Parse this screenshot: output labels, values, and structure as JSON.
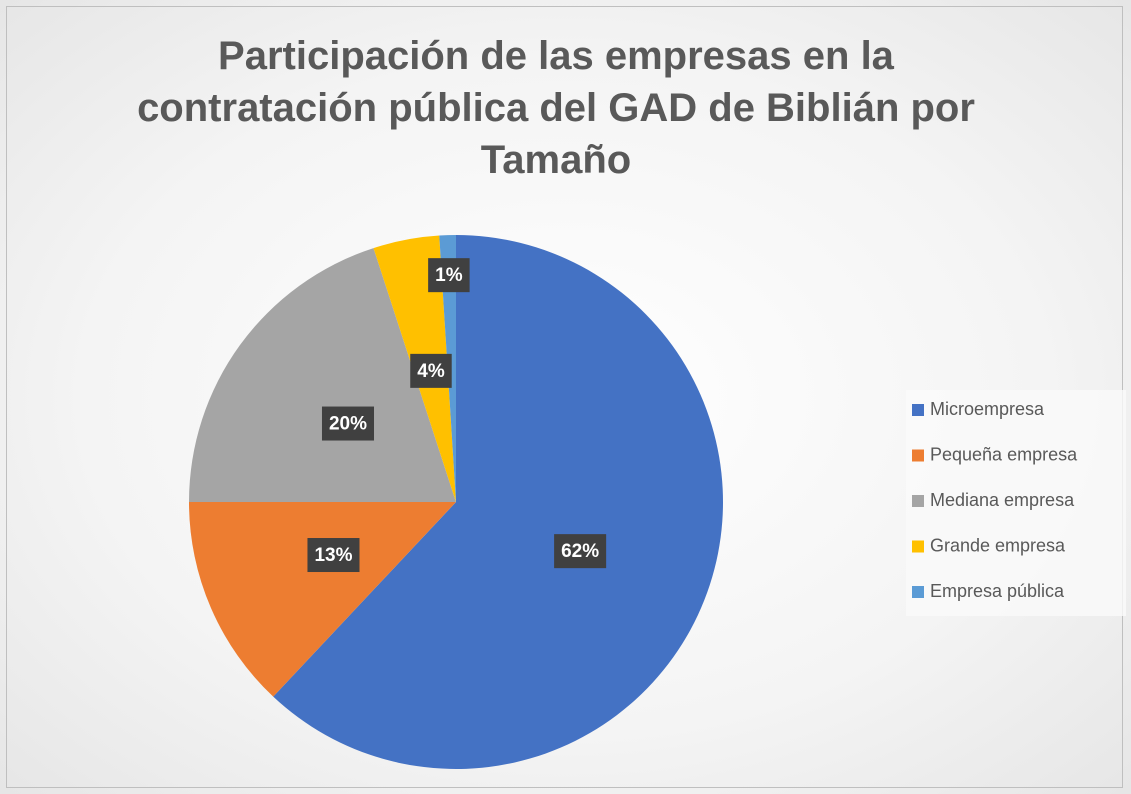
{
  "chart_data": {
    "type": "pie",
    "title": "Participación de las empresas en la contratación pública del GAD de Biblián por Tamaño",
    "categories": [
      "Microempresa",
      "Pequeña empresa",
      "Mediana empresa",
      "Grande empresa",
      "Empresa pública"
    ],
    "values": [
      62,
      13,
      20,
      4,
      1
    ],
    "value_labels": [
      "62%",
      "13%",
      "20%",
      "4%",
      "1%"
    ],
    "colors": [
      "#4472c4",
      "#ed7d31",
      "#a5a5a5",
      "#ffc000",
      "#5b9bd5"
    ],
    "legend": "right"
  }
}
